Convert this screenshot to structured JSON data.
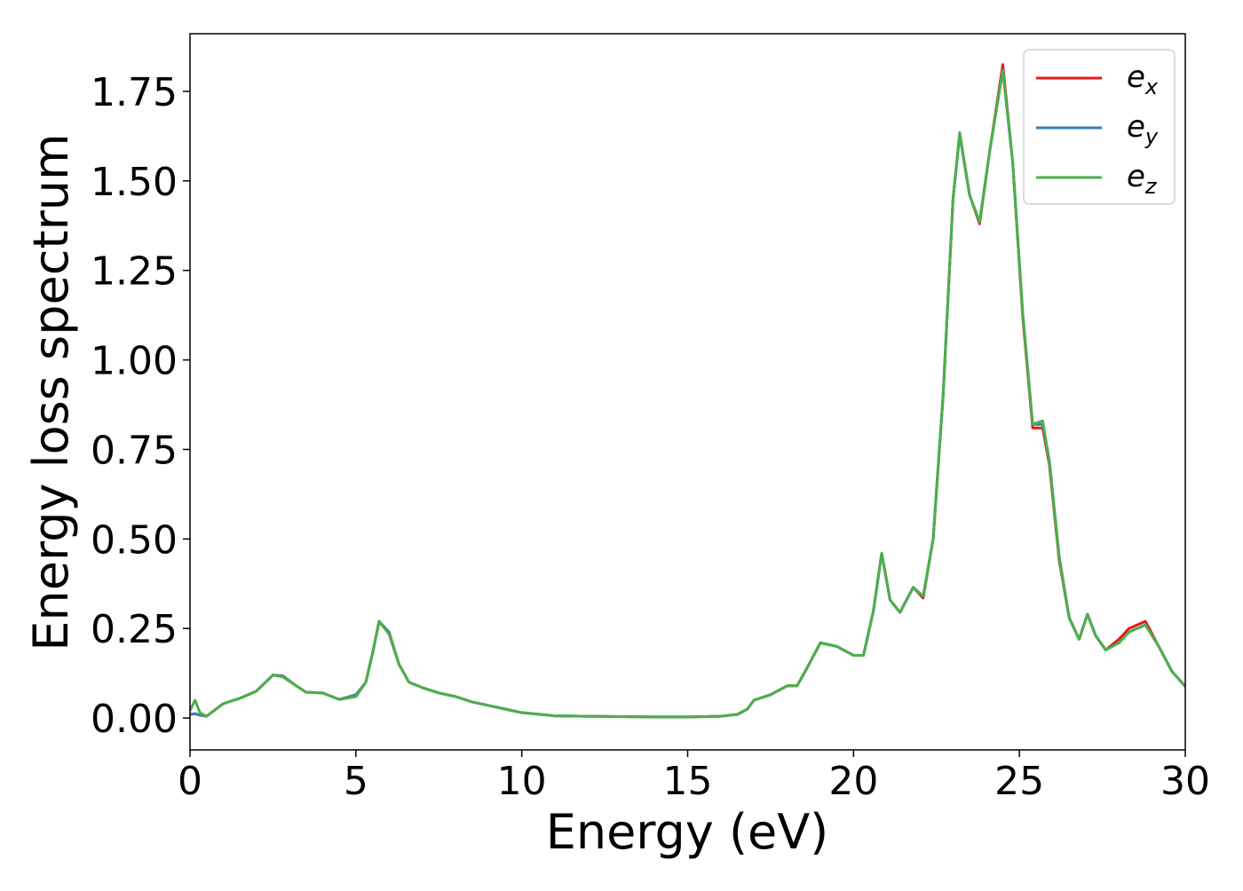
{
  "chart_data": {
    "type": "line",
    "xlabel": "Energy (eV)",
    "ylabel": "Energy loss spectrum",
    "x": [
      0,
      0.15,
      0.3,
      0.5,
      1,
      1.5,
      2,
      2.5,
      2.8,
      3.2,
      3.5,
      4,
      4.5,
      5,
      5.3,
      5.5,
      5.7,
      6,
      6.3,
      6.6,
      7,
      7.5,
      8,
      8.5,
      9,
      9.5,
      10,
      11,
      12,
      13,
      14,
      15,
      16,
      16.5,
      16.8,
      17,
      17.5,
      18,
      18.3,
      18.6,
      19,
      19.5,
      20,
      20.3,
      20.6,
      20.85,
      21.1,
      21.4,
      21.8,
      22.1,
      22.4,
      22.7,
      23,
      23.2,
      23.5,
      23.8,
      24.1,
      24.5,
      24.8,
      25.1,
      25.4,
      25.7,
      25.9,
      26.2,
      26.5,
      26.8,
      27.05,
      27.3,
      27.6,
      28,
      28.3,
      28.8,
      29.2,
      29.6,
      30
    ],
    "series": [
      {
        "name": "ex",
        "color": "#e41a1c",
        "values": [
          0.01,
          0.012,
          0.008,
          0.005,
          0.04,
          0.055,
          0.075,
          0.12,
          0.115,
          0.09,
          0.072,
          0.07,
          0.052,
          0.06,
          0.1,
          0.18,
          0.27,
          0.235,
          0.15,
          0.1,
          0.085,
          0.07,
          0.06,
          0.045,
          0.035,
          0.025,
          0.015,
          0.006,
          0.005,
          0.004,
          0.003,
          0.003,
          0.005,
          0.01,
          0.025,
          0.05,
          0.065,
          0.09,
          0.09,
          0.14,
          0.21,
          0.2,
          0.175,
          0.175,
          0.3,
          0.46,
          0.33,
          0.295,
          0.365,
          0.335,
          0.5,
          0.9,
          1.45,
          1.63,
          1.46,
          1.38,
          1.58,
          1.825,
          1.55,
          1.12,
          0.81,
          0.81,
          0.71,
          0.44,
          0.28,
          0.22,
          0.29,
          0.23,
          0.19,
          0.22,
          0.25,
          0.27,
          0.2,
          0.13,
          0.088
        ]
      },
      {
        "name": "ey",
        "color": "#377eb8",
        "values": [
          0.01,
          0.012,
          0.008,
          0.005,
          0.04,
          0.055,
          0.075,
          0.12,
          0.118,
          0.09,
          0.072,
          0.07,
          0.052,
          0.065,
          0.1,
          0.18,
          0.27,
          0.24,
          0.15,
          0.1,
          0.085,
          0.07,
          0.06,
          0.045,
          0.035,
          0.025,
          0.015,
          0.006,
          0.005,
          0.004,
          0.003,
          0.003,
          0.005,
          0.01,
          0.025,
          0.05,
          0.065,
          0.09,
          0.09,
          0.14,
          0.21,
          0.2,
          0.175,
          0.175,
          0.3,
          0.46,
          0.33,
          0.295,
          0.365,
          0.34,
          0.5,
          0.9,
          1.45,
          1.63,
          1.46,
          1.385,
          1.58,
          1.81,
          1.55,
          1.13,
          0.82,
          0.82,
          0.72,
          0.45,
          0.28,
          0.22,
          0.29,
          0.23,
          0.19,
          0.21,
          0.24,
          0.26,
          0.2,
          0.13,
          0.088
        ]
      },
      {
        "name": "ez",
        "color": "#4daf4a",
        "values": [
          0.02,
          0.05,
          0.015,
          0.005,
          0.04,
          0.055,
          0.075,
          0.12,
          0.115,
          0.09,
          0.072,
          0.07,
          0.052,
          0.06,
          0.1,
          0.18,
          0.27,
          0.235,
          0.15,
          0.1,
          0.085,
          0.07,
          0.06,
          0.045,
          0.035,
          0.025,
          0.015,
          0.006,
          0.005,
          0.004,
          0.003,
          0.003,
          0.005,
          0.01,
          0.025,
          0.05,
          0.065,
          0.09,
          0.09,
          0.14,
          0.21,
          0.2,
          0.175,
          0.175,
          0.3,
          0.46,
          0.33,
          0.295,
          0.365,
          0.34,
          0.5,
          0.9,
          1.45,
          1.635,
          1.46,
          1.385,
          1.58,
          1.81,
          1.55,
          1.13,
          0.82,
          0.83,
          0.72,
          0.45,
          0.28,
          0.22,
          0.29,
          0.23,
          0.19,
          0.21,
          0.24,
          0.26,
          0.2,
          0.13,
          0.088
        ]
      }
    ],
    "xlim": [
      0,
      30
    ],
    "xticks": [
      0,
      5,
      10,
      15,
      20,
      25,
      30
    ],
    "ylim": [
      -0.089,
      1.911
    ],
    "yticks": [
      {
        "value": 0,
        "label": "0.00"
      },
      {
        "value": 0.25,
        "label": "0.25"
      },
      {
        "value": 0.5,
        "label": "0.50"
      },
      {
        "value": 0.75,
        "label": "0.75"
      },
      {
        "value": 1,
        "label": "1.00"
      },
      {
        "value": 1.25,
        "label": "1.25"
      },
      {
        "value": 1.5,
        "label": "1.50"
      },
      {
        "value": 1.75,
        "label": "1.75"
      }
    ],
    "grid": false,
    "legend": "upper right"
  }
}
